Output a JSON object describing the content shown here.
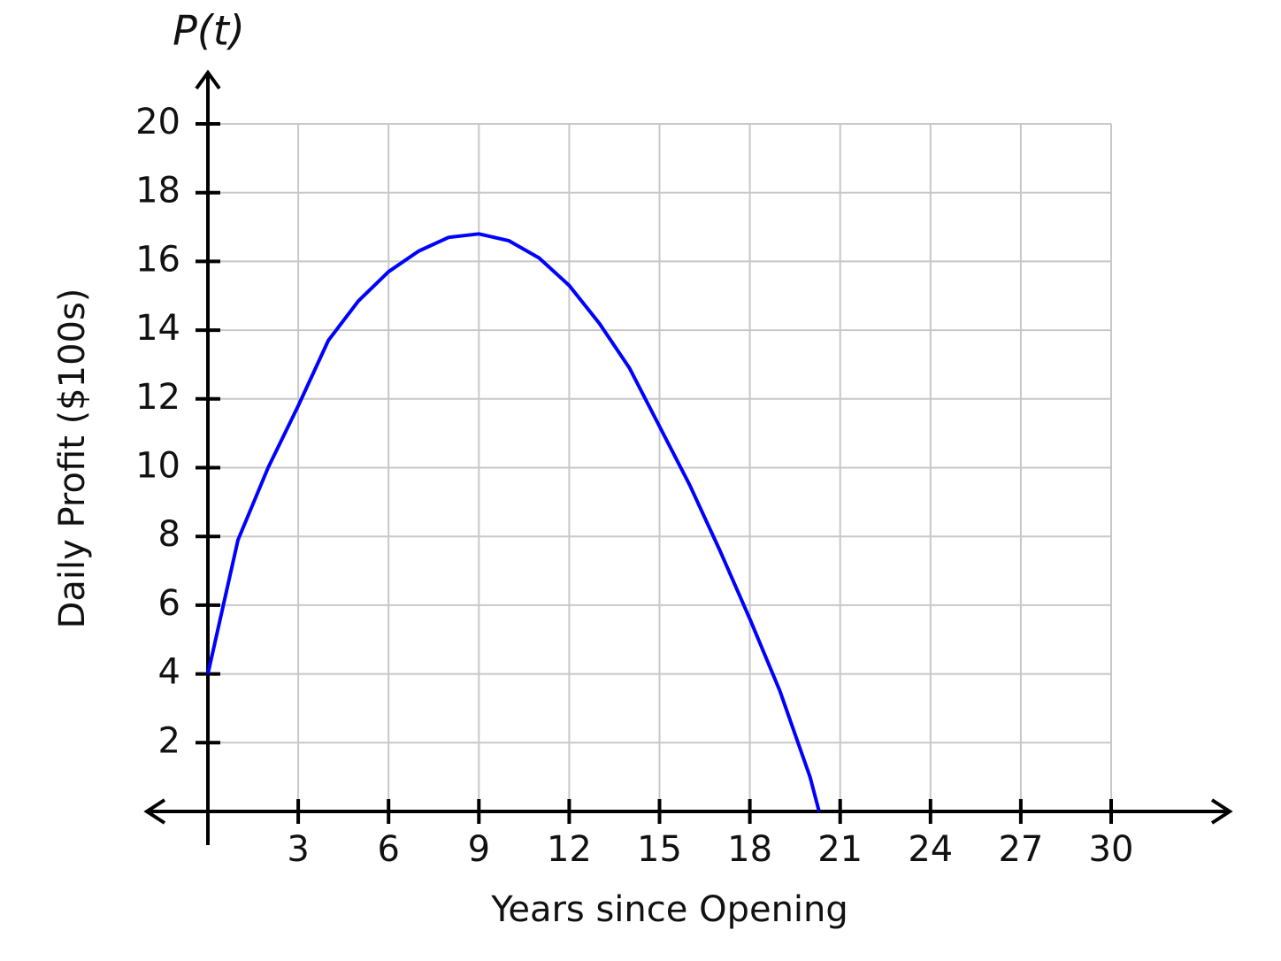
{
  "chart_data": {
    "type": "line",
    "function_label": "P(t)",
    "x_label": "Years since Opening",
    "y_label": "Daily Profit ($100s)",
    "x": [
      0,
      1,
      2,
      3,
      4,
      5,
      6,
      7,
      8,
      9,
      10,
      11,
      12,
      13,
      14,
      15,
      16,
      17,
      18,
      19,
      20,
      20.3
    ],
    "series": [
      {
        "color": "#0000ff",
        "values": [
          4,
          7.9,
          10,
          11.8,
          13.7,
          14.85,
          15.7,
          16.3,
          16.7,
          16.8,
          16.6,
          16.1,
          15.3,
          14.2,
          12.9,
          11.2,
          9.5,
          7.6,
          5.6,
          3.5,
          1.0,
          0
        ]
      }
    ],
    "xlim": [
      0,
      30
    ],
    "ylim": [
      0,
      20
    ],
    "xticks": [
      3,
      6,
      9,
      12,
      15,
      18,
      21,
      24,
      27,
      30
    ],
    "yticks": [
      2,
      4,
      6,
      8,
      10,
      12,
      14,
      16,
      18,
      20
    ],
    "grid": true
  }
}
